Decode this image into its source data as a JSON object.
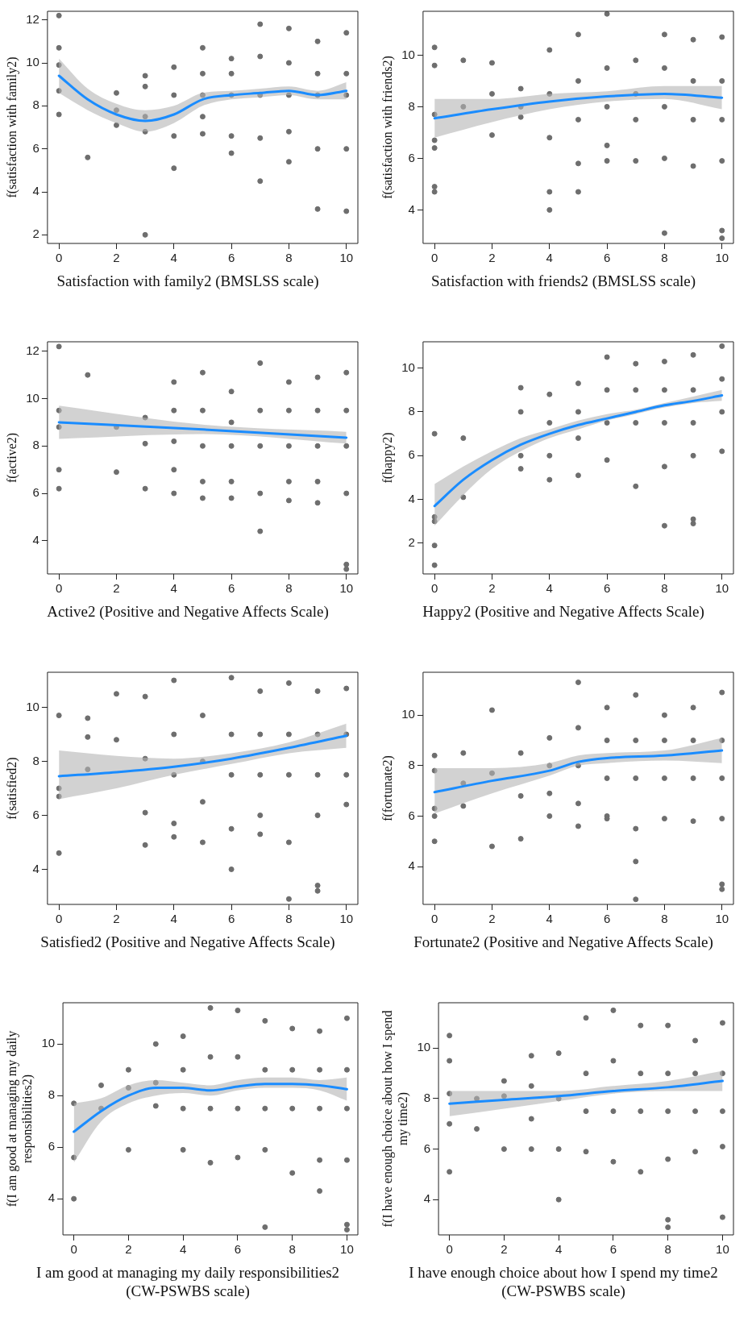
{
  "chart_data": [
    {
      "type": "scatter",
      "xlabel": "Satisfaction with family2 (BMSLSS scale)",
      "ylabel": "f(satisfaction with family2)",
      "xlim": [
        -0.4,
        10.4
      ],
      "xticks": [
        0,
        2,
        4,
        6,
        8,
        10
      ],
      "ylim": [
        1.6,
        12.4
      ],
      "yticks": [
        2,
        4,
        6,
        8,
        10,
        12
      ],
      "grid": false,
      "legend": false,
      "series": [
        {
          "type": "scatter",
          "marker": "circle",
          "color": "#6e6e6e",
          "x": [
            0,
            0,
            0,
            0,
            0,
            1,
            2,
            2,
            2,
            3,
            3,
            3,
            3,
            3,
            4,
            4,
            4,
            4,
            5,
            5,
            5,
            5,
            5,
            6,
            6,
            6,
            6,
            6,
            7,
            7,
            7,
            7,
            7,
            8,
            8,
            8,
            8,
            8,
            9,
            9,
            9,
            9,
            9,
            10,
            10,
            10,
            10,
            10
          ],
          "values": [
            12.2,
            10.7,
            9.9,
            8.7,
            7.6,
            5.6,
            8.6,
            7.8,
            7.1,
            9.4,
            8.9,
            7.5,
            6.8,
            2.0,
            9.8,
            8.5,
            6.6,
            5.1,
            10.7,
            9.5,
            8.5,
            7.5,
            6.7,
            10.2,
            9.5,
            8.5,
            6.6,
            5.8,
            11.8,
            10.3,
            8.5,
            6.5,
            4.5,
            11.6,
            10,
            8.5,
            6.8,
            5.4,
            11,
            9.5,
            8.5,
            6,
            3.2,
            11.4,
            9.5,
            8.5,
            6,
            3.1
          ]
        },
        {
          "type": "line",
          "marker": "none",
          "color": "#1a8cff",
          "x": [
            0,
            1,
            2,
            3,
            4,
            5,
            6,
            7,
            8,
            9,
            10
          ],
          "values": [
            9.4,
            8.3,
            7.6,
            7.3,
            7.6,
            8.3,
            8.5,
            8.6,
            8.7,
            8.5,
            8.7
          ],
          "lower": [
            8.6,
            7.8,
            7.2,
            6.8,
            7.2,
            8.0,
            8.3,
            8.4,
            8.5,
            8.3,
            8.3
          ],
          "upper": [
            10.2,
            8.8,
            8.1,
            7.8,
            8.0,
            8.6,
            8.7,
            8.8,
            8.9,
            8.7,
            9.1
          ]
        }
      ]
    },
    {
      "type": "scatter",
      "xlabel": "Satisfaction with friends2 (BMSLSS scale)",
      "ylabel": "f(satisfaction with friends2)",
      "xlim": [
        -0.4,
        10.4
      ],
      "xticks": [
        0,
        2,
        4,
        6,
        8,
        10
      ],
      "ylim": [
        2.7,
        11.7
      ],
      "yticks": [
        4,
        6,
        8,
        10
      ],
      "grid": false,
      "legend": false,
      "series": [
        {
          "type": "scatter",
          "marker": "circle",
          "color": "#6e6e6e",
          "x": [
            0,
            0,
            0,
            0,
            0,
            0,
            0,
            1,
            1,
            2,
            2,
            2,
            3,
            3,
            3,
            4,
            4,
            4,
            4,
            4,
            5,
            5,
            5,
            5,
            5,
            6,
            6,
            6,
            6,
            6,
            7,
            7,
            7,
            7,
            8,
            8,
            8,
            8,
            8,
            9,
            9,
            9,
            9,
            10,
            10,
            10,
            10,
            10,
            10
          ],
          "values": [
            10.3,
            9.6,
            7.7,
            6.7,
            6.4,
            4.9,
            4.7,
            9.8,
            8.0,
            9.7,
            8.5,
            6.9,
            8.7,
            8.0,
            7.6,
            10.2,
            8.5,
            6.8,
            4.7,
            4.0,
            10.8,
            9,
            7.5,
            5.8,
            4.7,
            11.6,
            9.5,
            8,
            6.5,
            5.9,
            9.8,
            8.5,
            7.5,
            5.9,
            10.8,
            9.5,
            8,
            6,
            3.1,
            10.6,
            9,
            7.5,
            5.7,
            10.7,
            9,
            7.5,
            5.9,
            3.2,
            2.9
          ]
        },
        {
          "type": "line",
          "marker": "none",
          "color": "#1a8cff",
          "x": [
            0,
            2,
            4,
            6,
            8,
            10
          ],
          "values": [
            7.55,
            7.9,
            8.2,
            8.4,
            8.5,
            8.35
          ],
          "lower": [
            6.8,
            7.4,
            7.9,
            8.2,
            8.3,
            7.9
          ],
          "upper": [
            8.3,
            8.3,
            8.5,
            8.6,
            8.8,
            8.8
          ]
        }
      ]
    },
    {
      "type": "scatter",
      "xlabel": "Active2 (Positive and Negative Affects Scale)",
      "ylabel": "f(active2)",
      "xlim": [
        -0.4,
        10.4
      ],
      "xticks": [
        0,
        2,
        4,
        6,
        8,
        10
      ],
      "ylim": [
        2.6,
        12.4
      ],
      "yticks": [
        4,
        6,
        8,
        10,
        12
      ],
      "grid": false,
      "legend": false,
      "series": [
        {
          "type": "scatter",
          "marker": "circle",
          "color": "#6e6e6e",
          "x": [
            0,
            0,
            0,
            0,
            0,
            1,
            2,
            2,
            3,
            3,
            3,
            4,
            4,
            4,
            4,
            4,
            5,
            5,
            5,
            5,
            5,
            6,
            6,
            6,
            6,
            6,
            7,
            7,
            7,
            7,
            7,
            8,
            8,
            8,
            8,
            8,
            9,
            9,
            9,
            9,
            9,
            10,
            10,
            10,
            10,
            10,
            10
          ],
          "values": [
            12.2,
            9.5,
            8.8,
            7.0,
            6.2,
            11.0,
            8.8,
            6.9,
            9.2,
            8.1,
            6.2,
            10.7,
            9.5,
            8.2,
            7,
            6.0,
            11.1,
            9.5,
            8,
            6.5,
            5.8,
            10.3,
            9,
            8,
            6.5,
            5.8,
            11.5,
            9.5,
            8,
            6,
            4.4,
            10.7,
            9.5,
            8,
            6.5,
            5.7,
            10.9,
            9.5,
            8,
            6.5,
            5.6,
            11.1,
            9.5,
            8,
            6,
            3.0,
            2.8
          ]
        },
        {
          "type": "line",
          "marker": "none",
          "color": "#1a8cff",
          "x": [
            0,
            5,
            10
          ],
          "values": [
            9.0,
            8.7,
            8.35
          ],
          "lower": [
            8.3,
            8.5,
            8.1
          ],
          "upper": [
            9.7,
            8.9,
            8.6
          ]
        }
      ]
    },
    {
      "type": "scatter",
      "xlabel": "Happy2 (Positive and Negative Affects Scale)",
      "ylabel": "f(happy2)",
      "xlim": [
        -0.4,
        10.4
      ],
      "xticks": [
        0,
        2,
        4,
        6,
        8,
        10
      ],
      "ylim": [
        0.6,
        11.2
      ],
      "yticks": [
        2,
        4,
        6,
        8,
        10
      ],
      "grid": false,
      "legend": false,
      "series": [
        {
          "type": "scatter",
          "marker": "circle",
          "color": "#6e6e6e",
          "x": [
            0,
            0,
            0,
            0,
            0,
            1,
            1,
            3,
            3,
            3,
            3,
            4,
            4,
            4,
            4,
            5,
            5,
            5,
            5,
            6,
            6,
            6,
            6,
            7,
            7,
            7,
            7,
            8,
            8,
            8,
            8,
            8,
            9,
            9,
            9,
            9,
            9,
            9,
            10,
            10,
            10,
            10
          ],
          "values": [
            7.0,
            3.2,
            3.0,
            1.9,
            1.0,
            6.8,
            4.1,
            9.1,
            8.0,
            6.0,
            5.4,
            8.8,
            7.5,
            6,
            4.9,
            9.3,
            8,
            6.8,
            5.1,
            10.5,
            9,
            7.5,
            5.8,
            10.2,
            9,
            7.5,
            4.6,
            10.3,
            9,
            7.5,
            5.5,
            2.8,
            10.6,
            9,
            7.5,
            6.0,
            3.1,
            2.9,
            11.0,
            9.5,
            8,
            6.2
          ]
        },
        {
          "type": "line",
          "marker": "none",
          "color": "#1a8cff",
          "x": [
            0,
            1,
            2,
            3,
            4,
            5,
            6,
            7,
            8,
            9,
            10
          ],
          "values": [
            3.7,
            4.9,
            5.8,
            6.5,
            7.0,
            7.4,
            7.7,
            8.0,
            8.3,
            8.5,
            8.75
          ],
          "lower": [
            2.8,
            4.2,
            5.4,
            6.2,
            6.8,
            7.2,
            7.6,
            7.9,
            8.2,
            8.4,
            8.5
          ],
          "upper": [
            4.7,
            5.5,
            6.2,
            6.8,
            7.2,
            7.6,
            7.9,
            8.1,
            8.4,
            8.7,
            9.0
          ]
        }
      ]
    },
    {
      "type": "scatter",
      "xlabel": "Satisfied2 (Positive and Negative Affects Scale)",
      "ylabel": "f(satisfied2)",
      "xlim": [
        -0.4,
        10.4
      ],
      "xticks": [
        0,
        2,
        4,
        6,
        8,
        10
      ],
      "ylim": [
        2.7,
        11.3
      ],
      "yticks": [
        4,
        6,
        8,
        10
      ],
      "grid": false,
      "legend": false,
      "series": [
        {
          "type": "scatter",
          "marker": "circle",
          "color": "#6e6e6e",
          "x": [
            0,
            0,
            0,
            0,
            1,
            1,
            1,
            2,
            2,
            3,
            3,
            3,
            3,
            4,
            4,
            4,
            4,
            4,
            5,
            5,
            5,
            5,
            6,
            6,
            6,
            6,
            6,
            7,
            7,
            7,
            7,
            7,
            8,
            8,
            8,
            8,
            8,
            9,
            9,
            9,
            9,
            9,
            9,
            10,
            10,
            10,
            10
          ],
          "values": [
            9.7,
            7.0,
            6.7,
            4.6,
            9.6,
            8.9,
            7.7,
            10.5,
            8.8,
            10.4,
            8.1,
            6.1,
            4.9,
            11.0,
            9,
            7.5,
            5.7,
            5.2,
            9.7,
            8,
            6.5,
            5.0,
            11.1,
            9,
            7.5,
            5.5,
            4.0,
            10.6,
            9,
            7.5,
            6,
            5.3,
            10.9,
            9,
            7.5,
            5,
            2.9,
            10.6,
            9,
            7.5,
            6.0,
            3.4,
            3.2,
            10.7,
            9,
            7.5,
            6.4
          ]
        },
        {
          "type": "line",
          "marker": "none",
          "color": "#1a8cff",
          "x": [
            0,
            2,
            4,
            6,
            8,
            10
          ],
          "values": [
            7.45,
            7.6,
            7.8,
            8.1,
            8.5,
            8.95
          ],
          "lower": [
            6.6,
            7.0,
            7.5,
            7.9,
            8.3,
            8.5
          ],
          "upper": [
            8.4,
            8.2,
            8.1,
            8.3,
            8.7,
            9.4
          ]
        }
      ]
    },
    {
      "type": "scatter",
      "xlabel": "Fortunate2 (Positive and Negative Affects Scale)",
      "ylabel": "f(fortunate2)",
      "xlim": [
        -0.4,
        10.4
      ],
      "xticks": [
        0,
        2,
        4,
        6,
        8,
        10
      ],
      "ylim": [
        2.5,
        11.7
      ],
      "yticks": [
        4,
        6,
        8,
        10
      ],
      "grid": false,
      "legend": false,
      "series": [
        {
          "type": "scatter",
          "marker": "circle",
          "color": "#6e6e6e",
          "x": [
            0,
            0,
            0,
            0,
            0,
            1,
            1,
            1,
            2,
            2,
            2,
            3,
            3,
            3,
            4,
            4,
            4,
            4,
            5,
            5,
            5,
            5,
            5,
            6,
            6,
            6,
            6,
            6,
            7,
            7,
            7,
            7,
            7,
            7,
            8,
            8,
            8,
            8,
            9,
            9,
            9,
            9,
            10,
            10,
            10,
            10,
            10,
            10
          ],
          "values": [
            8.4,
            7.8,
            6.3,
            6.0,
            5.0,
            8.5,
            7.3,
            6.4,
            10.2,
            7.7,
            4.8,
            8.5,
            6.8,
            5.1,
            9.1,
            8,
            6.9,
            6.0,
            11.3,
            9.5,
            8,
            6.5,
            5.6,
            10.3,
            9,
            7.5,
            6,
            5.9,
            10.8,
            9,
            7.5,
            5.5,
            4.2,
            2.7,
            10.0,
            9,
            7.5,
            5.9,
            10.3,
            9,
            7.5,
            5.8,
            10.9,
            9,
            7.5,
            5.9,
            3.3,
            3.1
          ]
        },
        {
          "type": "line",
          "marker": "none",
          "color": "#1a8cff",
          "x": [
            0,
            2,
            4,
            5,
            6,
            8,
            10
          ],
          "values": [
            6.95,
            7.4,
            7.8,
            8.15,
            8.3,
            8.4,
            8.6
          ],
          "lower": [
            6.1,
            6.9,
            7.6,
            8.0,
            8.1,
            8.2,
            8.1
          ],
          "upper": [
            7.9,
            7.9,
            8.1,
            8.4,
            8.5,
            8.6,
            9.1
          ]
        }
      ]
    },
    {
      "type": "scatter",
      "xlabel": "I am good at managing my daily responsibilities2 (CW-PSWBS scale)",
      "ylabel": "f(I am good at managing my daily responsibilities2)",
      "xlim": [
        -0.4,
        10.4
      ],
      "xticks": [
        0,
        2,
        4,
        6,
        8,
        10
      ],
      "ylim": [
        2.6,
        11.6
      ],
      "yticks": [
        4,
        6,
        8,
        10
      ],
      "grid": false,
      "legend": false,
      "series": [
        {
          "type": "scatter",
          "marker": "circle",
          "color": "#6e6e6e",
          "x": [
            0,
            0,
            0,
            1,
            1,
            2,
            2,
            2,
            3,
            3,
            3,
            4,
            4,
            4,
            4,
            5,
            5,
            5,
            5,
            6,
            6,
            6,
            6,
            7,
            7,
            7,
            7,
            7,
            8,
            8,
            8,
            8,
            9,
            9,
            9,
            9,
            9,
            10,
            10,
            10,
            10,
            10,
            10
          ],
          "values": [
            7.7,
            5.6,
            4.0,
            8.4,
            7.5,
            9.0,
            8.3,
            5.9,
            10.0,
            8.5,
            7.6,
            10.3,
            9,
            7.5,
            5.9,
            11.4,
            9.5,
            7.5,
            5.4,
            11.3,
            9.5,
            7.5,
            5.6,
            10.9,
            9,
            7.5,
            5.9,
            2.9,
            10.6,
            9,
            7.5,
            5.0,
            10.5,
            9,
            7.5,
            5.5,
            4.3,
            11.0,
            9,
            7.5,
            5.5,
            3.0,
            2.8
          ]
        },
        {
          "type": "line",
          "marker": "none",
          "color": "#1a8cff",
          "x": [
            0,
            1,
            2,
            3,
            4,
            5,
            6,
            7,
            8,
            9,
            10
          ],
          "values": [
            6.6,
            7.4,
            8.0,
            8.3,
            8.3,
            8.2,
            8.35,
            8.45,
            8.45,
            8.4,
            8.25
          ],
          "lower": [
            5.4,
            7.0,
            7.7,
            8.0,
            8.1,
            8.0,
            8.2,
            8.3,
            8.3,
            8.2,
            7.8
          ],
          "upper": [
            7.7,
            7.9,
            8.4,
            8.6,
            8.5,
            8.4,
            8.6,
            8.7,
            8.7,
            8.6,
            8.7
          ]
        }
      ]
    },
    {
      "type": "scatter",
      "xlabel": "I have enough choice about how I spend my time2 (CW-PSWBS scale)",
      "ylabel": "f(I have enough choice about how I spend my time2)",
      "xlim": [
        -0.4,
        10.4
      ],
      "xticks": [
        0,
        2,
        4,
        6,
        8,
        10
      ],
      "ylim": [
        2.6,
        11.8
      ],
      "yticks": [
        4,
        6,
        8,
        10
      ],
      "grid": false,
      "legend": false,
      "series": [
        {
          "type": "scatter",
          "marker": "circle",
          "color": "#6e6e6e",
          "x": [
            0,
            0,
            0,
            0,
            0,
            1,
            1,
            2,
            2,
            2,
            3,
            3,
            3,
            3,
            4,
            4,
            4,
            4,
            5,
            5,
            5,
            5,
            6,
            6,
            6,
            6,
            7,
            7,
            7,
            7,
            8,
            8,
            8,
            8,
            8,
            8,
            9,
            9,
            9,
            9,
            10,
            10,
            10,
            10,
            10
          ],
          "values": [
            10.5,
            9.5,
            8.2,
            7.0,
            5.1,
            8.0,
            6.8,
            8.7,
            8.1,
            6.0,
            9.7,
            8.5,
            7.2,
            6.0,
            9.8,
            8,
            6,
            4.0,
            11.2,
            9,
            7.5,
            5.9,
            11.5,
            9.5,
            7.5,
            5.5,
            10.9,
            9,
            7.5,
            5.1,
            10.9,
            9,
            7.5,
            5.6,
            3.2,
            2.9,
            10.3,
            9,
            7.5,
            5.9,
            11.0,
            9,
            7.5,
            6.1,
            3.3
          ]
        },
        {
          "type": "line",
          "marker": "none",
          "color": "#1a8cff",
          "x": [
            0,
            2,
            4,
            6,
            8,
            10
          ],
          "values": [
            7.8,
            7.95,
            8.1,
            8.3,
            8.45,
            8.7
          ],
          "lower": [
            7.3,
            7.6,
            7.9,
            8.2,
            8.3,
            8.3
          ],
          "upper": [
            8.3,
            8.3,
            8.3,
            8.5,
            8.7,
            9.1
          ]
        }
      ]
    }
  ]
}
